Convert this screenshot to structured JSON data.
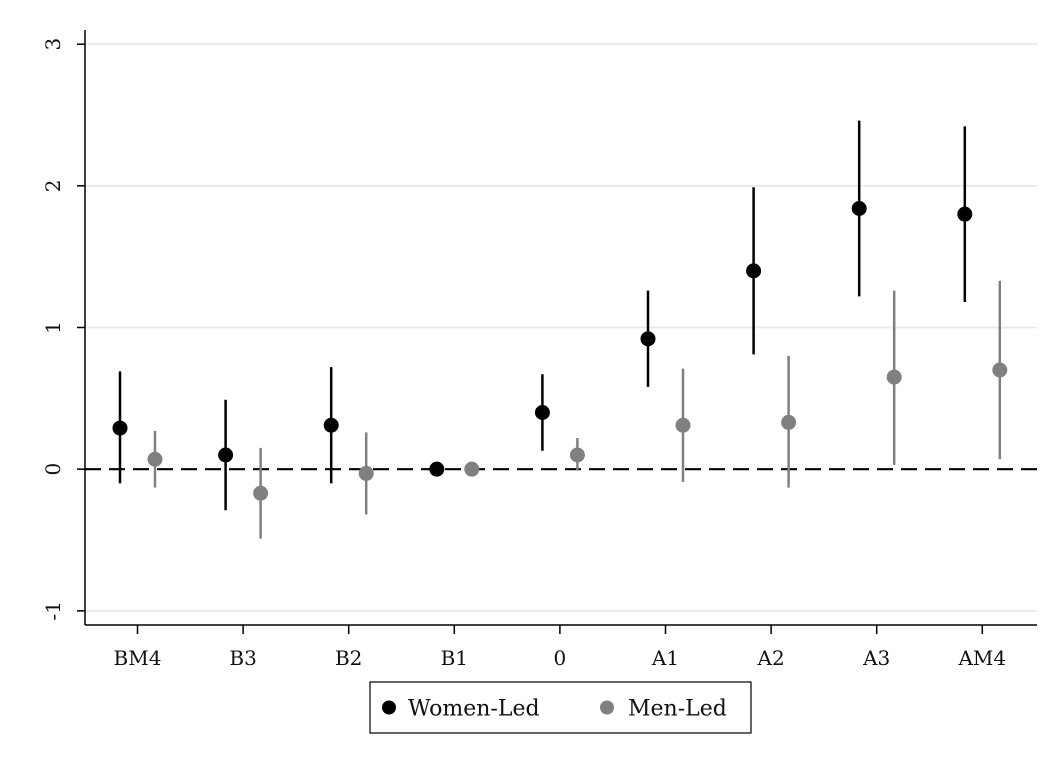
{
  "chart_data": {
    "type": "scatter",
    "title": "",
    "xlabel": "",
    "ylabel": "",
    "categories": [
      "BM4",
      "B3",
      "B2",
      "B1",
      "0",
      "A1",
      "A2",
      "A3",
      "AM4"
    ],
    "ylim": [
      -1.1,
      3.1
    ],
    "yticks": [
      -1,
      0,
      1,
      2,
      3
    ],
    "reference_line": 0,
    "grid": true,
    "legend_position": "bottom",
    "series": [
      {
        "name": "Women-Led",
        "color": "#000000",
        "values": [
          0.29,
          0.1,
          0.31,
          0.0,
          0.4,
          0.92,
          1.4,
          1.84,
          1.8
        ],
        "ci_low": [
          -0.1,
          -0.29,
          -0.1,
          0.0,
          0.13,
          0.58,
          0.81,
          1.22,
          1.18
        ],
        "ci_high": [
          0.69,
          0.49,
          0.72,
          0.0,
          0.67,
          1.26,
          1.99,
          2.46,
          2.42
        ]
      },
      {
        "name": "Men-Led",
        "color": "#808080",
        "values": [
          0.07,
          -0.17,
          -0.03,
          0.0,
          0.1,
          0.31,
          0.33,
          0.65,
          0.7
        ],
        "ci_low": [
          -0.13,
          -0.49,
          -0.32,
          0.0,
          -0.01,
          -0.09,
          -0.13,
          0.03,
          0.07
        ],
        "ci_high": [
          0.27,
          0.15,
          0.26,
          0.0,
          0.22,
          0.71,
          0.8,
          1.26,
          1.33
        ]
      }
    ]
  }
}
